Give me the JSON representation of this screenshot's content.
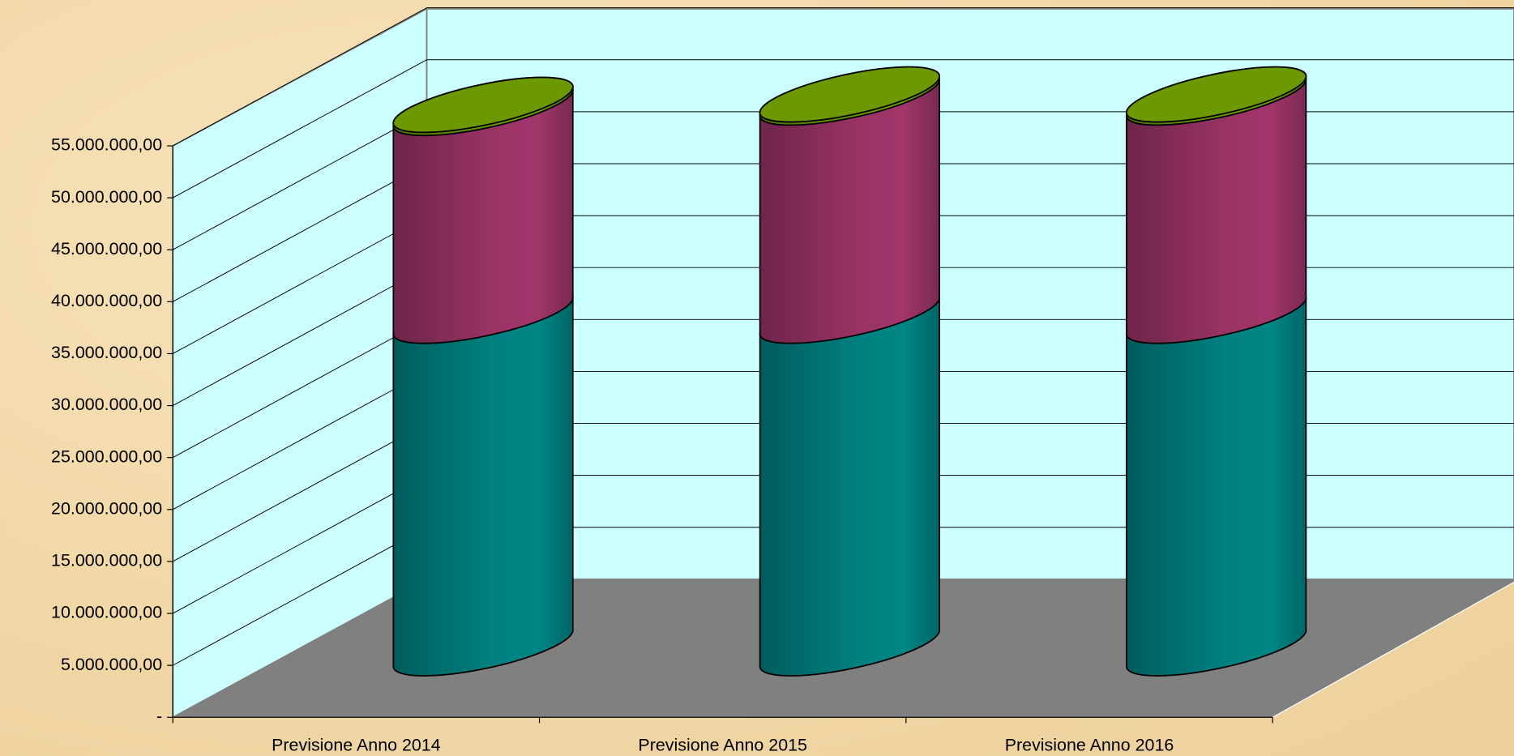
{
  "chart_data": {
    "type": "bar3d-cylinder-stacked",
    "categories": [
      "Previsione Anno 2014",
      "Previsione Anno 2015",
      "Previsione Anno 2016"
    ],
    "series": [
      {
        "color": "#008080",
        "values": [
          32000000,
          32000000,
          32000000
        ]
      },
      {
        "color": "#993366",
        "values": [
          20000000,
          21000000,
          21000000
        ]
      },
      {
        "color": "#6d9900",
        "values": [
          300000,
          300000,
          300000
        ]
      }
    ],
    "ylim": [
      0,
      55000000
    ],
    "yticks": [
      {
        "value": 0,
        "label": "-"
      },
      {
        "value": 5000000,
        "label": "5.000.000,00"
      },
      {
        "value": 10000000,
        "label": "10.000.000,00"
      },
      {
        "value": 15000000,
        "label": "15.000.000,00"
      },
      {
        "value": 20000000,
        "label": "20.000.000,00"
      },
      {
        "value": 25000000,
        "label": "25.000.000,00"
      },
      {
        "value": 30000000,
        "label": "30.000.000,00"
      },
      {
        "value": 35000000,
        "label": "35.000.000,00"
      },
      {
        "value": 40000000,
        "label": "40.000.000,00"
      },
      {
        "value": 45000000,
        "label": "45.000.000,00"
      },
      {
        "value": 50000000,
        "label": "50.000.000,00"
      },
      {
        "value": 55000000,
        "label": "55.000.000,00"
      }
    ],
    "grid": true
  }
}
